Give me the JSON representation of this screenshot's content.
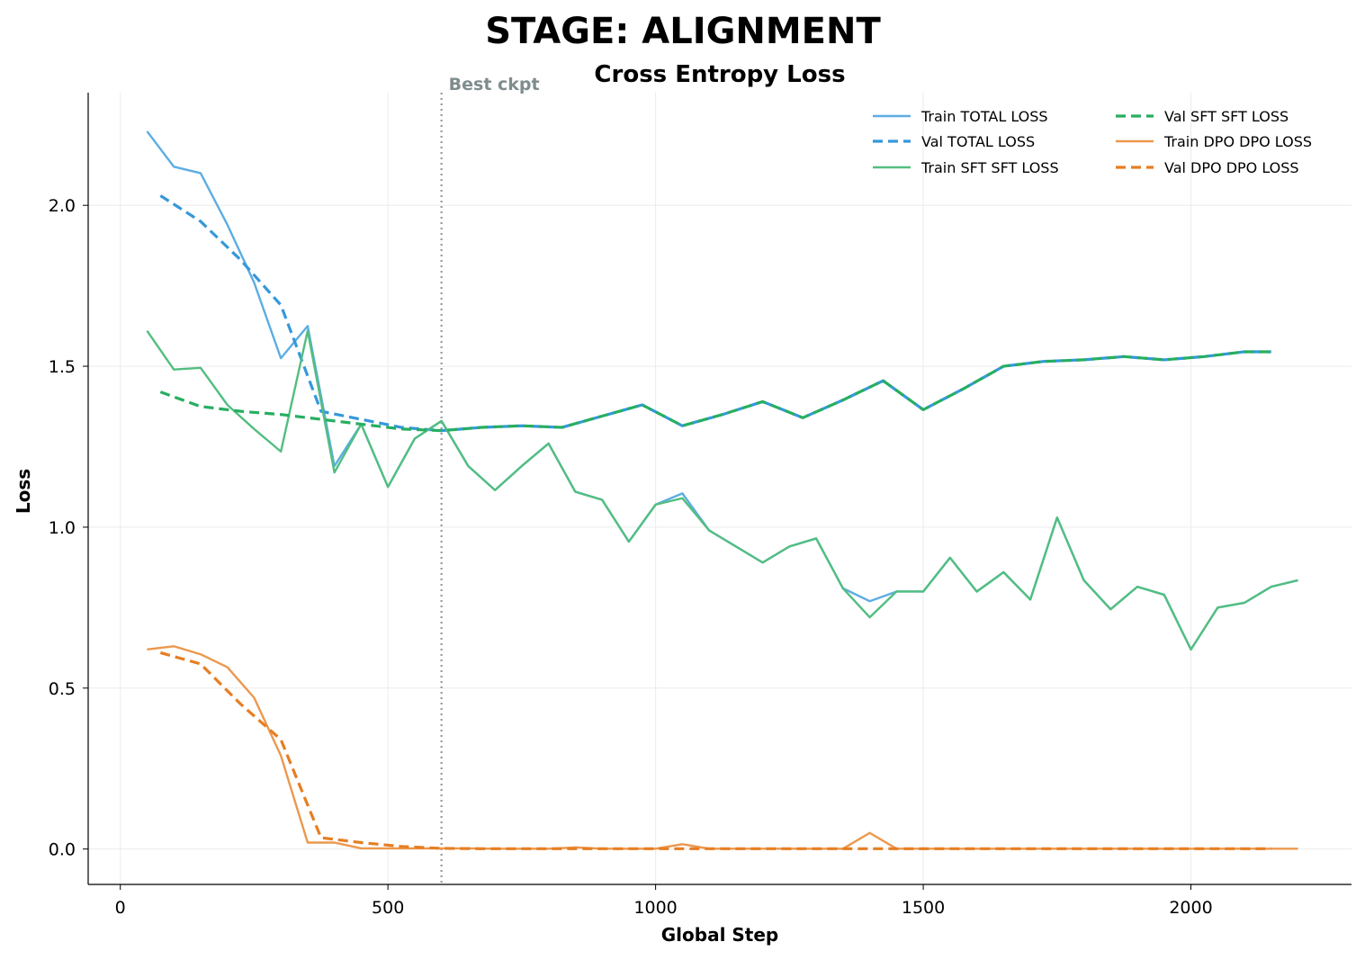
{
  "figure": {
    "suptitle": "STAGE: ALIGNMENT"
  },
  "chart_data": {
    "type": "line",
    "title": "Cross Entropy Loss",
    "xlabel": "Global Step",
    "ylabel": "Loss",
    "xlim": [
      -60,
      2300
    ],
    "ylim": [
      -0.11,
      2.35
    ],
    "xticks": [
      0,
      500,
      1000,
      1500,
      2000
    ],
    "yticks": [
      0.0,
      0.5,
      1.0,
      1.5,
      2.0
    ],
    "xtick_labels": [
      "0",
      "500",
      "1000",
      "1500",
      "2000"
    ],
    "ytick_labels": [
      "0.0",
      "0.5",
      "1.0",
      "1.5",
      "2.0"
    ],
    "grid": true,
    "legend": {
      "position": "top-right",
      "columns": 2
    },
    "annotations": [
      {
        "type": "vline",
        "x": 600,
        "label": "Best ckpt",
        "color": "#999999"
      }
    ],
    "series": [
      {
        "name": "Train TOTAL LOSS",
        "color": "#5dade2",
        "style": "solid",
        "x": [
          50,
          100,
          150,
          200,
          250,
          300,
          350,
          400,
          450,
          500,
          550,
          600,
          650,
          700,
          750,
          800,
          850,
          900,
          950,
          1000,
          1050,
          1100,
          1150,
          1200,
          1250,
          1300,
          1350,
          1400,
          1450,
          1500,
          1550,
          1600,
          1650,
          1700,
          1750,
          1800,
          1850,
          1900,
          1950,
          2000,
          2050,
          2100,
          2150,
          2200
        ],
        "y": [
          2.23,
          2.12,
          2.1,
          1.94,
          1.76,
          1.525,
          1.625,
          1.19,
          1.32,
          1.125,
          1.275,
          1.33,
          1.19,
          1.115,
          1.19,
          1.26,
          1.11,
          1.085,
          0.955,
          1.07,
          1.105,
          0.99,
          0.94,
          0.89,
          0.94,
          0.965,
          0.81,
          0.77,
          0.8,
          0.8,
          0.905,
          0.8,
          0.86,
          0.775,
          1.03,
          0.835,
          0.745,
          0.815,
          0.79,
          0.62,
          0.75,
          0.765,
          0.815,
          0.835
        ]
      },
      {
        "name": "Val TOTAL LOSS",
        "color": "#3498db",
        "style": "dashed",
        "x": [
          75,
          150,
          225,
          300,
          375,
          450,
          525,
          600,
          675,
          750,
          825,
          900,
          975,
          1050,
          1125,
          1200,
          1275,
          1350,
          1425,
          1500,
          1575,
          1650,
          1725,
          1800,
          1875,
          1950,
          2025,
          2100,
          2150
        ],
        "y": [
          2.03,
          1.95,
          1.83,
          1.69,
          1.36,
          1.335,
          1.31,
          1.3,
          1.31,
          1.315,
          1.31,
          1.345,
          1.38,
          1.315,
          1.35,
          1.39,
          1.34,
          1.395,
          1.455,
          1.365,
          1.43,
          1.5,
          1.515,
          1.52,
          1.53,
          1.52,
          1.53,
          1.545,
          1.545
        ]
      },
      {
        "name": "Train SFT SFT LOSS",
        "color": "#52be80",
        "style": "solid",
        "x": [
          50,
          100,
          150,
          200,
          250,
          300,
          350,
          400,
          450,
          500,
          550,
          600,
          650,
          700,
          750,
          800,
          850,
          900,
          950,
          1000,
          1050,
          1100,
          1150,
          1200,
          1250,
          1300,
          1350,
          1400,
          1450,
          1500,
          1550,
          1600,
          1650,
          1700,
          1750,
          1800,
          1850,
          1900,
          1950,
          2000,
          2050,
          2100,
          2150,
          2200
        ],
        "y": [
          1.61,
          1.49,
          1.495,
          1.38,
          1.305,
          1.235,
          1.61,
          1.17,
          1.32,
          1.125,
          1.275,
          1.33,
          1.19,
          1.115,
          1.19,
          1.26,
          1.11,
          1.085,
          0.955,
          1.07,
          1.09,
          0.99,
          0.94,
          0.89,
          0.94,
          0.965,
          0.81,
          0.72,
          0.8,
          0.8,
          0.905,
          0.8,
          0.86,
          0.775,
          1.03,
          0.835,
          0.745,
          0.815,
          0.79,
          0.62,
          0.75,
          0.765,
          0.815,
          0.835
        ]
      },
      {
        "name": "Val SFT SFT LOSS",
        "color": "#27ae60",
        "style": "dashed",
        "x": [
          75,
          150,
          225,
          300,
          375,
          450,
          525,
          600,
          675,
          750,
          825,
          900,
          975,
          1050,
          1125,
          1200,
          1275,
          1350,
          1425,
          1500,
          1575,
          1650,
          1725,
          1800,
          1875,
          1950,
          2025,
          2100,
          2150
        ],
        "y": [
          1.42,
          1.375,
          1.36,
          1.35,
          1.335,
          1.32,
          1.305,
          1.3,
          1.31,
          1.315,
          1.31,
          1.345,
          1.38,
          1.315,
          1.35,
          1.39,
          1.34,
          1.395,
          1.455,
          1.365,
          1.43,
          1.5,
          1.515,
          1.52,
          1.53,
          1.52,
          1.53,
          1.545,
          1.545
        ]
      },
      {
        "name": "Train DPO DPO LOSS",
        "color": "#eb984e",
        "style": "solid",
        "x": [
          50,
          100,
          150,
          200,
          250,
          300,
          350,
          400,
          450,
          500,
          550,
          600,
          650,
          700,
          750,
          800,
          850,
          900,
          950,
          1000,
          1050,
          1100,
          1150,
          1200,
          1250,
          1300,
          1350,
          1400,
          1450,
          1500,
          1550,
          1600,
          1650,
          1700,
          1750,
          1800,
          1850,
          1900,
          1950,
          2000,
          2050,
          2100,
          2150,
          2200
        ],
        "y": [
          0.62,
          0.63,
          0.605,
          0.565,
          0.47,
          0.29,
          0.02,
          0.02,
          0.002,
          0.002,
          0.002,
          0.002,
          0.002,
          0.001,
          0.001,
          0.001,
          0.005,
          0.001,
          0.001,
          0.001,
          0.015,
          0.001,
          0.001,
          0.001,
          0.001,
          0.001,
          0.001,
          0.05,
          0.001,
          0.001,
          0.001,
          0.001,
          0.001,
          0.001,
          0.001,
          0.001,
          0.001,
          0.001,
          0.001,
          0.001,
          0.001,
          0.001,
          0.001,
          0.001
        ]
      },
      {
        "name": "Val DPO DPO LOSS",
        "color": "#e67e22",
        "style": "dashed",
        "x": [
          75,
          150,
          225,
          300,
          375,
          450,
          525,
          600,
          675,
          750,
          825,
          900,
          975,
          1050,
          1125,
          1200,
          1275,
          1350,
          1425,
          1500,
          1575,
          1650,
          1725,
          1800,
          1875,
          1950,
          2025,
          2100,
          2150
        ],
        "y": [
          0.61,
          0.575,
          0.45,
          0.34,
          0.035,
          0.02,
          0.008,
          0.002,
          0.001,
          0.001,
          0.001,
          0.001,
          0.001,
          0.001,
          0.001,
          0.001,
          0.001,
          0.001,
          0.001,
          0.001,
          0.001,
          0.001,
          0.001,
          0.001,
          0.001,
          0.001,
          0.001,
          0.001,
          0.001
        ]
      }
    ]
  }
}
